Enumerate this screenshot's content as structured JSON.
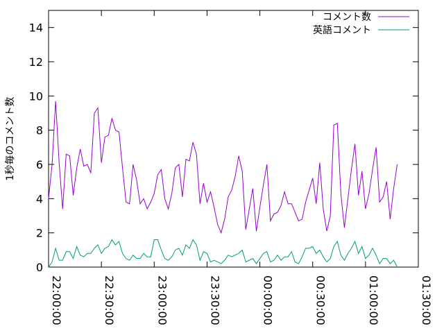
{
  "chart_data": {
    "type": "line",
    "title": "",
    "xlabel": "",
    "ylabel": "1秒毎のコメント数",
    "xlim": [
      "22:00:00",
      "01:30:00"
    ],
    "ylim": [
      0,
      15
    ],
    "yticks": [
      0,
      2,
      4,
      6,
      8,
      10,
      12,
      14
    ],
    "xticks": [
      "22:00:00",
      "22:30:00",
      "23:00:00",
      "23:30:00",
      "00:00:00",
      "00:30:00",
      "01:00:00",
      "01:30:00"
    ],
    "grid": false,
    "legend_position": "top-right",
    "x_step_minutes": 2,
    "series": [
      {
        "name": "コメント数",
        "color": "#9400d3",
        "values": [
          4.0,
          6.0,
          9.7,
          6.1,
          3.4,
          6.6,
          6.5,
          4.2,
          5.8,
          6.9,
          5.9,
          6.0,
          5.5,
          9.0,
          9.3,
          6.1,
          7.6,
          7.7,
          8.7,
          8.0,
          7.9,
          5.8,
          3.8,
          3.7,
          6.0,
          5.1,
          3.7,
          4.0,
          3.4,
          3.8,
          4.3,
          5.4,
          5.7,
          4.0,
          3.4,
          4.3,
          5.8,
          6.0,
          4.1,
          6.3,
          6.2,
          7.3,
          6.6,
          3.7,
          4.9,
          3.8,
          4.4,
          3.5,
          2.5,
          2.0,
          2.8,
          4.1,
          4.5,
          5.3,
          6.5,
          5.6,
          2.2,
          3.4,
          4.6,
          2.1,
          3.5,
          4.8,
          6.0,
          2.7,
          3.1,
          3.2,
          3.6,
          4.4,
          3.7,
          3.7,
          3.2,
          2.7,
          2.8,
          3.8,
          4.5,
          5.2,
          3.7,
          6.1,
          3.4,
          2.1,
          3.0,
          8.3,
          8.4,
          4.3,
          2.3,
          4.0,
          5.7,
          7.2,
          4.2,
          5.6,
          3.4,
          4.3,
          5.7,
          7.0,
          3.8,
          4.1,
          5.0,
          2.8,
          4.6,
          6.0
        ]
      },
      {
        "name": "英語コメント",
        "color": "#009e73",
        "values": [
          0.0,
          0.3,
          1.1,
          0.4,
          0.4,
          0.9,
          0.9,
          0.5,
          1.2,
          0.7,
          0.6,
          0.8,
          0.8,
          1.1,
          1.3,
          0.8,
          1.1,
          1.2,
          1.6,
          1.3,
          1.5,
          0.8,
          0.5,
          0.4,
          0.7,
          0.5,
          0.5,
          0.8,
          0.6,
          0.6,
          1.6,
          1.6,
          1.0,
          0.5,
          0.4,
          0.6,
          1.0,
          1.1,
          0.7,
          1.3,
          1.1,
          1.6,
          1.3,
          0.4,
          0.9,
          0.8,
          0.3,
          0.4,
          0.3,
          0.2,
          0.4,
          0.7,
          0.6,
          0.7,
          0.8,
          1.0,
          0.3,
          0.4,
          0.5,
          0.2,
          0.5,
          0.8,
          0.9,
          0.3,
          0.4,
          0.7,
          0.4,
          0.6,
          0.6,
          0.9,
          0.3,
          0.2,
          0.6,
          1.1,
          1.1,
          1.2,
          0.8,
          1.0,
          0.6,
          0.3,
          0.5,
          1.2,
          1.5,
          0.7,
          0.4,
          0.8,
          1.1,
          1.5,
          0.8,
          1.2,
          0.5,
          0.7,
          1.1,
          0.7,
          0.2,
          0.5,
          0.5,
          0.2,
          0.4,
          0.0
        ]
      }
    ]
  }
}
